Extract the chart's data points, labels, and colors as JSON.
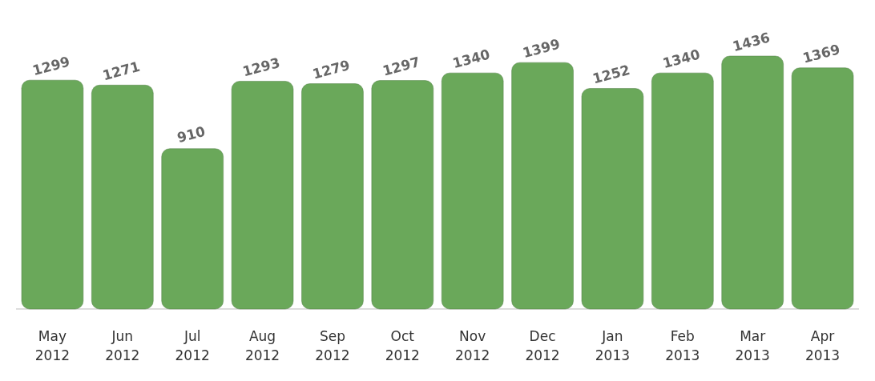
{
  "chart_data": {
    "type": "bar",
    "categories": [
      "May 2012",
      "Jun 2012",
      "Jul 2012",
      "Aug 2012",
      "Sep 2012",
      "Oct 2012",
      "Nov 2012",
      "Dec 2012",
      "Jan 2013",
      "Feb 2013",
      "Mar 2013",
      "Apr 2013"
    ],
    "values": [
      1299,
      1271,
      910,
      1293,
      1279,
      1297,
      1340,
      1399,
      1252,
      1340,
      1436,
      1369
    ],
    "color": "#6aa85a",
    "data_labels": true
  }
}
